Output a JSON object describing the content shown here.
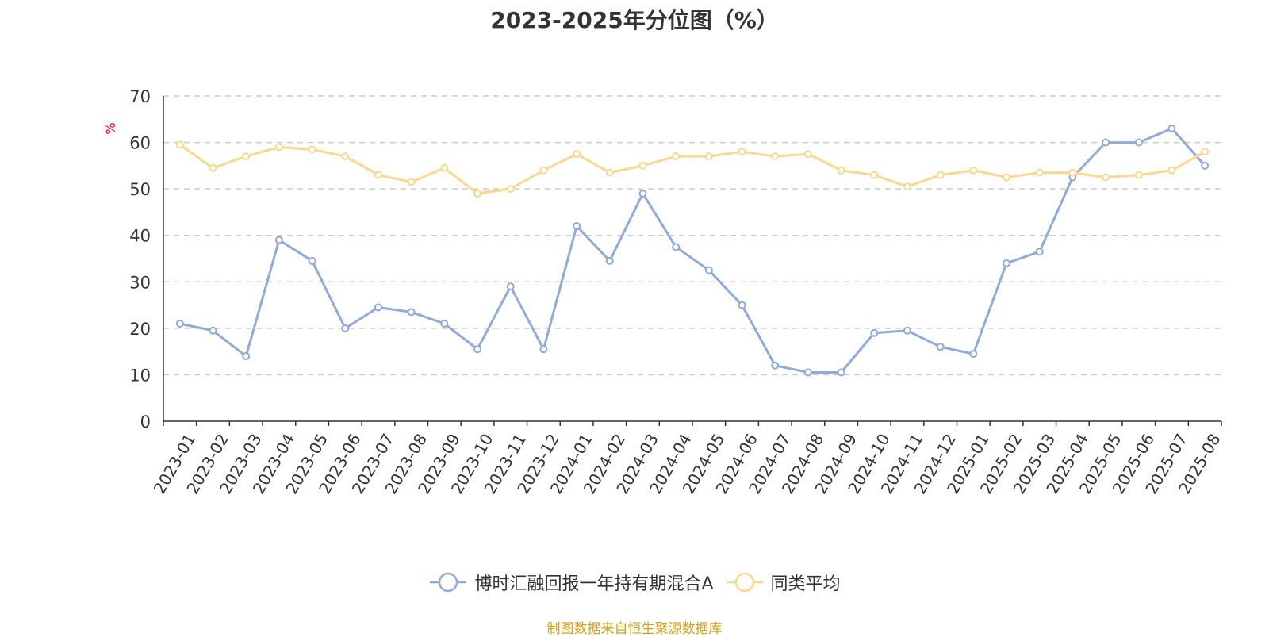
{
  "chart_data": {
    "type": "line",
    "title": "2023-2025年分位图（%）",
    "xlabel": "",
    "ylabel": "%",
    "ylim": [
      0,
      70
    ],
    "yticks": [
      0,
      10,
      20,
      30,
      40,
      50,
      60,
      70
    ],
    "grid": true,
    "legend_position": "bottom-center",
    "categories": [
      "2023-01",
      "2023-02",
      "2023-03",
      "2023-04",
      "2023-05",
      "2023-06",
      "2023-07",
      "2023-08",
      "2023-09",
      "2023-10",
      "2023-11",
      "2023-12",
      "2024-01",
      "2024-02",
      "2024-03",
      "2024-04",
      "2024-05",
      "2024-06",
      "2024-07",
      "2024-08",
      "2024-09",
      "2024-10",
      "2024-11",
      "2024-12",
      "2025-01",
      "2025-02",
      "2025-03",
      "2025-04",
      "2025-05",
      "2025-06",
      "2025-07",
      "2025-08"
    ],
    "series": [
      {
        "name": "博时汇融回报一年持有期混合A",
        "color": "#8faadc",
        "values": [
          21,
          19.5,
          14,
          39,
          34.5,
          20,
          24.5,
          23.5,
          21,
          15.5,
          29,
          15.5,
          42,
          34.5,
          49,
          37.5,
          32.5,
          25,
          12,
          10.5,
          10.5,
          19,
          19.5,
          16,
          14.5,
          34,
          36.5,
          52.5,
          60,
          60,
          63,
          55
        ]
      },
      {
        "name": "同类平均",
        "color": "#fbd88e",
        "values": [
          59.5,
          54.5,
          57,
          59,
          58.5,
          57,
          53,
          51.5,
          54.5,
          49,
          50,
          54,
          57.5,
          53.5,
          55,
          57,
          57,
          58,
          57,
          57.5,
          54,
          53,
          50.5,
          53,
          54,
          52.5,
          53.5,
          53.5,
          52.5,
          53,
          54,
          58
        ]
      }
    ]
  },
  "source_note": "制图数据来自恒生聚源数据库"
}
